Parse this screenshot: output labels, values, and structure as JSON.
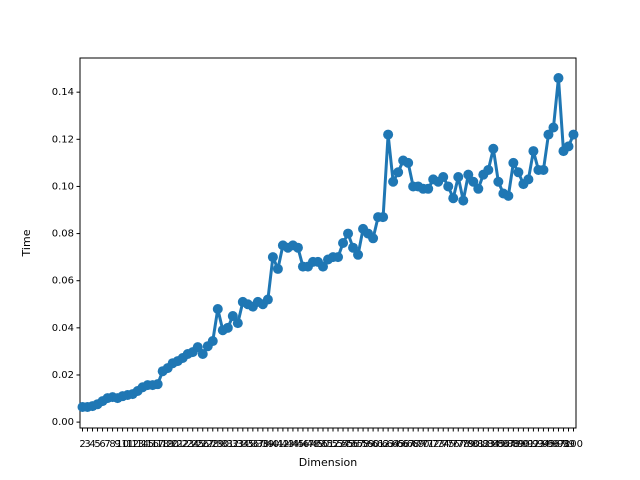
{
  "chart_data": {
    "type": "line",
    "x_label": "Dimension",
    "y_label": "Time",
    "categories": [
      "2",
      "3",
      "4",
      "5",
      "6",
      "7",
      "8",
      "9",
      "10",
      "11",
      "12",
      "13",
      "14",
      "15",
      "16",
      "17",
      "18",
      "19",
      "20",
      "21",
      "22",
      "23",
      "24",
      "25",
      "26",
      "27",
      "28",
      "29",
      "30",
      "31",
      "32",
      "33",
      "34",
      "35",
      "36",
      "37",
      "38",
      "39",
      "40",
      "41",
      "42",
      "43",
      "44",
      "45",
      "46",
      "47",
      "48",
      "49",
      "50",
      "51",
      "52",
      "53",
      "54",
      "55",
      "56",
      "57",
      "58",
      "59",
      "60",
      "61",
      "62",
      "63",
      "64",
      "65",
      "66",
      "67",
      "68",
      "69",
      "70",
      "71",
      "72",
      "73",
      "74",
      "75",
      "76",
      "77",
      "78",
      "79",
      "80",
      "81",
      "82",
      "83",
      "84",
      "85",
      "86",
      "87",
      "88",
      "89",
      "90",
      "91",
      "92",
      "93",
      "94",
      "95",
      "96",
      "97",
      "98",
      "99",
      "100"
    ],
    "series": [
      {
        "name": "Time",
        "color": "#1f77b4",
        "values": [
          0.0064,
          0.0064,
          0.0068,
          0.0076,
          0.0089,
          0.0102,
          0.0106,
          0.0102,
          0.011,
          0.0115,
          0.0119,
          0.0132,
          0.0148,
          0.0157,
          0.0157,
          0.0161,
          0.0216,
          0.0229,
          0.025,
          0.0259,
          0.0272,
          0.0289,
          0.0297,
          0.0318,
          0.0289,
          0.0322,
          0.0344,
          0.048,
          0.039,
          0.04,
          0.045,
          0.042,
          0.051,
          0.05,
          0.049,
          0.051,
          0.05,
          0.052,
          0.07,
          0.065,
          0.075,
          0.074,
          0.075,
          0.074,
          0.066,
          0.066,
          0.068,
          0.068,
          0.066,
          0.069,
          0.07,
          0.07,
          0.076,
          0.08,
          0.074,
          0.071,
          0.082,
          0.08,
          0.078,
          0.087,
          0.087,
          0.122,
          0.102,
          0.106,
          0.111,
          0.11,
          0.1,
          0.1,
          0.099,
          0.099,
          0.103,
          0.102,
          0.104,
          0.1,
          0.095,
          0.104,
          0.094,
          0.105,
          0.102,
          0.099,
          0.105,
          0.107,
          0.116,
          0.102,
          0.097,
          0.096,
          0.11,
          0.106,
          0.101,
          0.103,
          0.115,
          0.107,
          0.107,
          0.122,
          0.125,
          0.146,
          0.115,
          0.117,
          0.122
        ]
      }
    ],
    "ylim": [
      -0.0025,
      0.1545
    ],
    "yticks": [
      {
        "value": 0,
        "label": "0.00"
      },
      {
        "value": 0.02,
        "label": "0.02"
      },
      {
        "value": 0.04,
        "label": "0.04"
      },
      {
        "value": 0.06,
        "label": "0.06"
      },
      {
        "value": 0.08,
        "label": "0.08"
      },
      {
        "value": 0.1,
        "label": "0.10"
      },
      {
        "value": 0.12,
        "label": "0.12"
      },
      {
        "value": 0.14,
        "label": "0.14"
      }
    ]
  }
}
